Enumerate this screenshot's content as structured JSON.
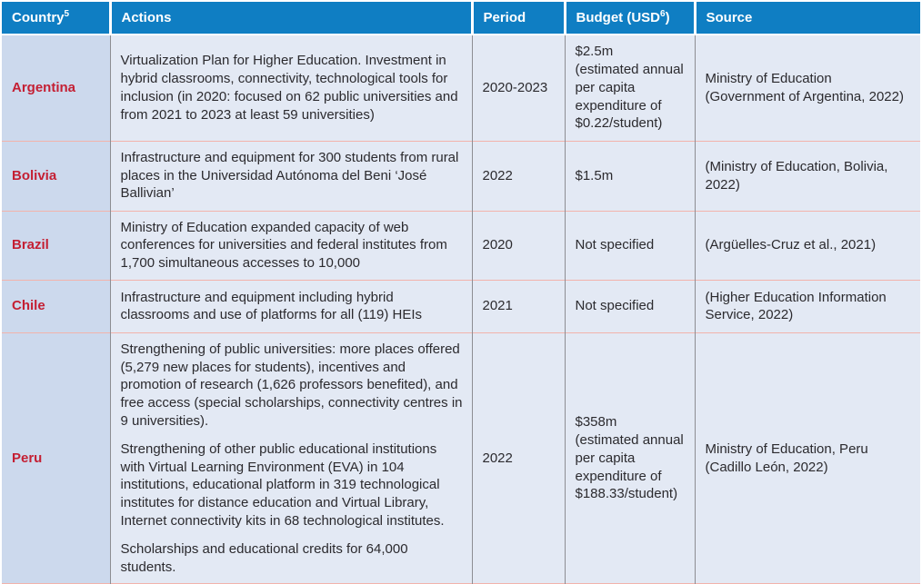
{
  "table": {
    "header": {
      "country_label": "Country",
      "country_footnote": "5",
      "actions_label": "Actions",
      "period_label": "Period",
      "budget_label_pre": "Budget (USD",
      "budget_footnote": "6",
      "budget_label_post": ")",
      "source_label": "Source"
    },
    "rows": [
      {
        "country": "Argentina",
        "actions": [
          "Virtualization Plan for Higher Education. Investment in hybrid classrooms, connectivity, technological tools for inclusion (in 2020: focused on 62 public universities and from 2021 to 2023 at least 59 universities)"
        ],
        "period": "2020-2023",
        "budget": "$2.5m\n(estimated annual per capita expenditure of $0.22/student)",
        "source": "Ministry of Education (Government of Argentina, 2022)"
      },
      {
        "country": "Bolivia",
        "actions": [
          "Infrastructure and equipment for 300 students from rural places in the Universidad Autónoma del Beni ‘José Ballivian’"
        ],
        "period": "2022",
        "budget": "$1.5m",
        "source": "(Ministry of Education, Bolivia, 2022)"
      },
      {
        "country": "Brazil",
        "actions": [
          "Ministry of Education expanded capacity of web conferences for universities and federal institutes from 1,700 simultaneous accesses to 10,000"
        ],
        "period": "2020",
        "budget": "Not specified",
        "source": "(Argüelles-Cruz et al., 2021)"
      },
      {
        "country": "Chile",
        "actions": [
          "Infrastructure and equipment including hybrid classrooms and use of platforms for all (119) HEIs"
        ],
        "period": "2021",
        "budget": "Not specified",
        "source": "(Higher Education Information Service, 2022)"
      },
      {
        "country": "Peru",
        "actions": [
          "Strengthening of public universities: more places offered (5,279 new places for students), incentives and promotion of research (1,626 professors benefited), and free access (special scholarships, connectivity centres in 9 universities).",
          "Strengthening of other public educational institutions with Virtual Learning Environment (EVA) in 104 institutions, educational platform in 319 technological institutes for distance education and Virtual Library, Internet connectivity kits in 68 technological institutes.",
          "Scholarships and educational credits for 64,000 students."
        ],
        "period": "2022",
        "budget": "$358m\n(estimated annual per capita expenditure of $188.33/student)",
        "source": "Ministry of Education, Peru (Cadillo León, 2022)"
      }
    ]
  },
  "colors": {
    "header_bg": "#0f7ec3",
    "header_text": "#ffffff",
    "country_cell_bg": "#ccd9ed",
    "body_cell_bg": "#e3e9f4",
    "country_text": "#c41f33",
    "body_text": "#2b2a2e",
    "row_divider": "#f2b3ab",
    "column_divider": "#8d8d92",
    "outer_bg": "#ffffff"
  }
}
